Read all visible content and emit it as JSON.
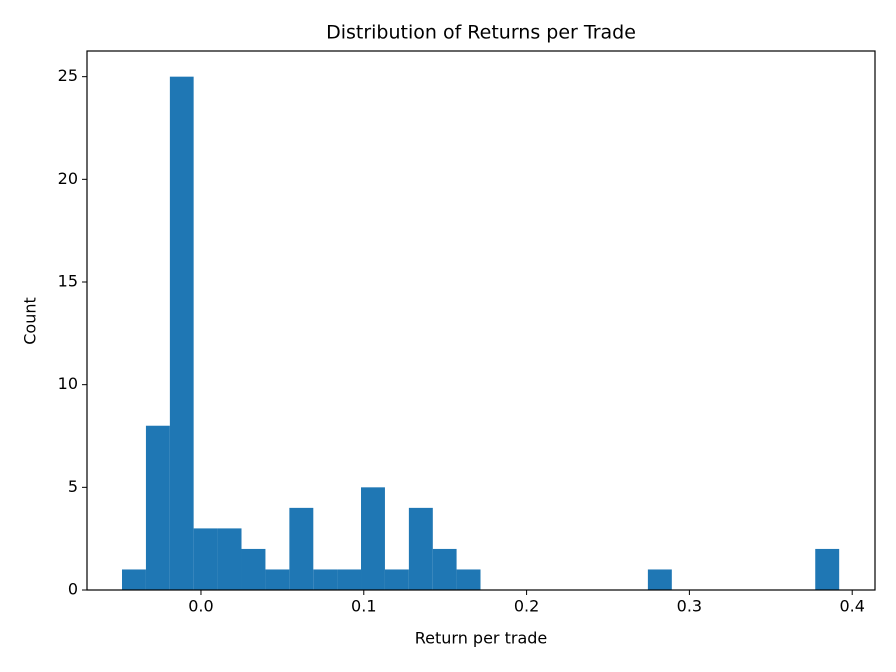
{
  "chart_data": {
    "type": "histogram",
    "title": "Distribution of Returns per Trade",
    "xlabel": "Return per trade",
    "ylabel": "Count",
    "color": "#1f77b4",
    "bins": [
      -0.0485,
      -0.0338,
      -0.0191,
      -0.0045,
      0.0102,
      0.0249,
      0.0396,
      0.0543,
      0.069,
      0.0836,
      0.0983,
      0.113,
      0.1277,
      0.1424,
      0.157,
      0.1717,
      0.1864,
      0.2011,
      0.2158,
      0.2304,
      0.2451,
      0.2598,
      0.2745,
      0.2892,
      0.3039,
      0.3185,
      0.3332,
      0.3479,
      0.3626,
      0.3773,
      0.392
    ],
    "counts": [
      1,
      8,
      25,
      3,
      3,
      2,
      1,
      4,
      1,
      1,
      5,
      1,
      4,
      2,
      1,
      0,
      0,
      0,
      0,
      0,
      0,
      0,
      1,
      0,
      0,
      0,
      0,
      0,
      0,
      2
    ],
    "xlim": [
      -0.07,
      0.414
    ],
    "ylim": [
      0,
      26.25
    ],
    "xticks": [
      {
        "value": 0,
        "label": "0.0"
      },
      0.1,
      0.2,
      0.3,
      0.4
    ],
    "yticks": [
      0,
      5,
      10,
      15,
      20,
      25
    ]
  }
}
